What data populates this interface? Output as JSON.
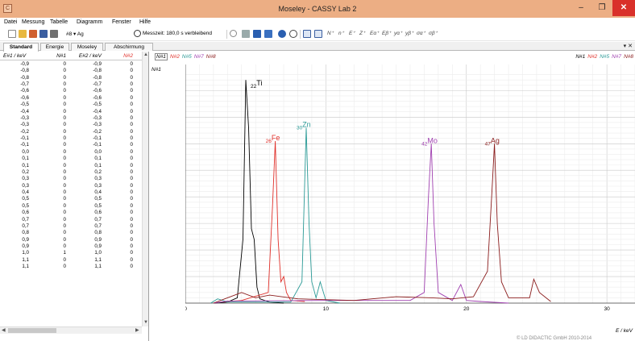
{
  "window": {
    "title": "Moseley - CASSY Lab 2",
    "minimize": "–",
    "maximize": "❐",
    "close": "✕",
    "app_icon": "app-icon"
  },
  "menu": [
    "Datei",
    "Messung",
    "Tabelle",
    "Diagramm",
    "Fenster",
    "Hilfe"
  ],
  "toolbar": {
    "channel_select": "#8 ▾ Ag",
    "measure_time": "Messzeit: 180,0 s verbleibend",
    "symbols": [
      "N⁺",
      "n⁺",
      "E⁺",
      "Z⁺",
      "Eα⁺",
      "Eβ⁺",
      "yα⁺",
      "yβ⁺",
      "σα⁺",
      "σβ⁺"
    ]
  },
  "tabs": [
    "Standard",
    "Energie",
    "Moseley",
    "Abschirmung"
  ],
  "tab_arrows": "▾ ✕",
  "table": {
    "headers": [
      "E#1 / keV",
      "N#1",
      "E#2 / keV",
      "N#2"
    ],
    "rows": [
      [
        "-0,9",
        "0",
        "-0,9",
        "0"
      ],
      [
        "-0,8",
        "0",
        "-0,8",
        "0"
      ],
      [
        "-0,8",
        "0",
        "-0,8",
        "0"
      ],
      [
        "-0,7",
        "0",
        "-0,7",
        "0"
      ],
      [
        "-0,6",
        "0",
        "-0,6",
        "0"
      ],
      [
        "-0,6",
        "0",
        "-0,6",
        "0"
      ],
      [
        "-0,5",
        "0",
        "-0,5",
        "0"
      ],
      [
        "-0,4",
        "0",
        "-0,4",
        "0"
      ],
      [
        "-0,3",
        "0",
        "-0,3",
        "0"
      ],
      [
        "-0,3",
        "0",
        "-0,3",
        "0"
      ],
      [
        "-0,2",
        "0",
        "-0,2",
        "0"
      ],
      [
        "-0,1",
        "0",
        "-0,1",
        "0"
      ],
      [
        "-0,1",
        "0",
        "-0,1",
        "0"
      ],
      [
        "0,0",
        "0",
        "0,0",
        "0"
      ],
      [
        "0,1",
        "0",
        "0,1",
        "0"
      ],
      [
        "0,1",
        "0",
        "0,1",
        "0"
      ],
      [
        "0,2",
        "0",
        "0,2",
        "0"
      ],
      [
        "0,3",
        "0",
        "0,3",
        "0"
      ],
      [
        "0,3",
        "0",
        "0,3",
        "0"
      ],
      [
        "0,4",
        "0",
        "0,4",
        "0"
      ],
      [
        "0,5",
        "0",
        "0,5",
        "0"
      ],
      [
        "0,5",
        "0",
        "0,5",
        "0"
      ],
      [
        "0,6",
        "0",
        "0,6",
        "0"
      ],
      [
        "0,7",
        "0",
        "0,7",
        "0"
      ],
      [
        "0,7",
        "0",
        "0,7",
        "0"
      ],
      [
        "0,8",
        "0",
        "0,8",
        "0"
      ],
      [
        "0,9",
        "0",
        "0,9",
        "0"
      ],
      [
        "0,9",
        "0",
        "0,9",
        "0"
      ],
      [
        "1,0",
        "1",
        "1,0",
        "0"
      ],
      [
        "1,1",
        "0",
        "1,1",
        "0"
      ],
      [
        "1,1",
        "0",
        "1,1",
        "0"
      ]
    ]
  },
  "chart_legend_left": [
    "N#1",
    "N#2",
    "N#5",
    "N#7",
    "N#8"
  ],
  "chart_legend_right": [
    "N#1",
    "N#2",
    "N#5",
    "N#7",
    "N#8"
  ],
  "colors": {
    "N#1": "#000000",
    "N#2": "#e0302a",
    "N#5": "#2a9a96",
    "N#7": "#a040b0",
    "N#8": "#8a1c1c"
  },
  "ylabel": "N#1",
  "xlabel": "E / keV",
  "footer": "© LD DIDACTIC GmbH 2010-2014",
  "chart_data": {
    "type": "line",
    "xlim": [
      0,
      32
    ],
    "ylim": [
      -5,
      440
    ],
    "xticks": [
      0,
      10,
      20,
      30
    ],
    "yticks": [
      0,
      50,
      100,
      150,
      200,
      250,
      300,
      350,
      400
    ],
    "grid": true,
    "series": [
      {
        "name": "N#1",
        "label": "22Ti",
        "x": [
          2,
          3,
          3.7,
          4.1,
          4.3,
          4.5,
          4.7,
          4.9,
          5.1,
          5.3,
          6,
          7
        ],
        "y": [
          0,
          2,
          10,
          120,
          420,
          330,
          140,
          120,
          30,
          8,
          2,
          0
        ]
      },
      {
        "name": "N#2",
        "label": "26Fe",
        "x": [
          2.5,
          4,
          5.9,
          6.2,
          6.4,
          6.6,
          6.8,
          7.0,
          7.2,
          7.5,
          8.5
        ],
        "y": [
          2,
          5,
          20,
          180,
          305,
          120,
          40,
          50,
          20,
          5,
          3
        ]
      },
      {
        "name": "N#5",
        "label": "30Zn",
        "x": [
          1.8,
          2.3,
          3,
          7.5,
          8.3,
          8.6,
          8.8,
          9.0,
          9.3,
          9.6,
          10.0,
          11
        ],
        "y": [
          0,
          8,
          2,
          2,
          40,
          330,
          150,
          40,
          10,
          40,
          5,
          0
        ]
      },
      {
        "name": "N#7",
        "label": "42Mo",
        "x": [
          2,
          3,
          10,
          16,
          17,
          17.3,
          17.5,
          17.7,
          18,
          19,
          19.6,
          20,
          21,
          23
        ],
        "y": [
          0,
          4,
          5,
          5,
          20,
          200,
          300,
          150,
          20,
          5,
          35,
          5,
          3,
          0
        ]
      },
      {
        "name": "N#8",
        "label": "47Ag",
        "x": [
          2,
          3,
          4,
          5,
          6,
          8,
          12,
          15,
          17.5,
          19,
          20.5,
          21.5,
          21.8,
          22.0,
          22.2,
          22.5,
          23,
          24.5,
          24.8,
          25.2,
          26
        ],
        "y": [
          0,
          10,
          20,
          10,
          15,
          8,
          5,
          12,
          10,
          8,
          12,
          60,
          200,
          300,
          150,
          40,
          10,
          10,
          45,
          20,
          3
        ]
      }
    ]
  }
}
